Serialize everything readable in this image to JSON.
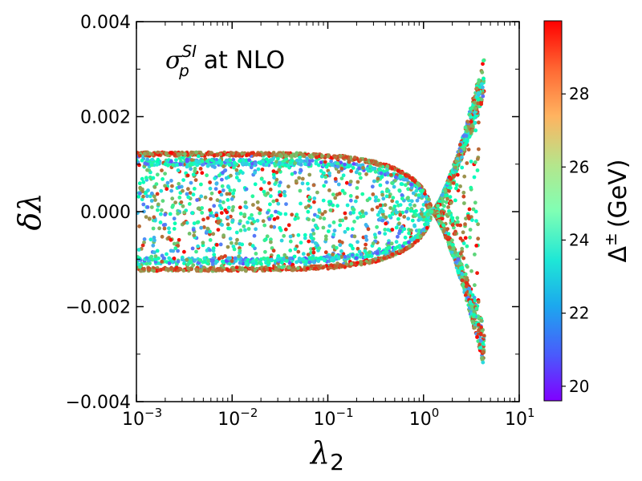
{
  "chart_data": {
    "type": "scatter",
    "annotation": {
      "sigma": "σ",
      "sup": "SI",
      "sub": "p",
      "text": "at NLO"
    },
    "xlabel": {
      "symbol": "λ",
      "sub": "2"
    },
    "ylabel": "δλ",
    "x_scale": "log",
    "xlim": [
      0.001,
      10
    ],
    "ylim": [
      -0.004,
      0.004
    ],
    "x_ticks": [
      {
        "value": 0.001,
        "base": "10",
        "exp": "−3"
      },
      {
        "value": 0.01,
        "base": "10",
        "exp": "−2"
      },
      {
        "value": 0.1,
        "base": "10",
        "exp": "−1"
      },
      {
        "value": 1,
        "base": "10",
        "exp": "0"
      },
      {
        "value": 10,
        "base": "10",
        "exp": "1"
      }
    ],
    "y_ticks": [
      {
        "value": 0.004,
        "label": "0.004"
      },
      {
        "value": 0.002,
        "label": "0.002"
      },
      {
        "value": 0.0,
        "label": "0.000"
      },
      {
        "value": -0.002,
        "label": "−0.002"
      },
      {
        "value": -0.004,
        "label": "−0.004"
      }
    ],
    "colorbar": {
      "label_main": "Δ",
      "label_sup": "±",
      "label_unit": "(GeV)",
      "range": [
        19.6,
        30.0
      ],
      "ticks": [
        20,
        22,
        24,
        26,
        28
      ],
      "tick_labels": [
        "20",
        "22",
        "24",
        "26",
        "28"
      ],
      "colormap": "rainbow"
    },
    "region": {
      "description_points": "dense band for lambda2 < ~1, delta_lambda within ±0.00125; funnels to zero near lambda2 ≈ 1.2, then branches diverge up to ±0.0032 at lambda2 ≈ 4.3",
      "outer_bound_low_lambda": 0.00125,
      "inner_band_low_lambda": 0.001,
      "crossing_lambda2": 1.2,
      "branch_max_lambda2": 4.3,
      "branch_max_delta": 0.0032
    }
  }
}
